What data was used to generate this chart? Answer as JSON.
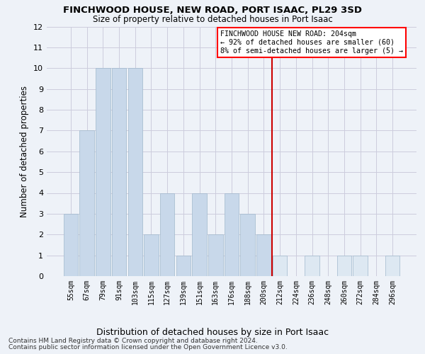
{
  "title": "FINCHWOOD HOUSE, NEW ROAD, PORT ISAAC, PL29 3SD",
  "subtitle": "Size of property relative to detached houses in Port Isaac",
  "xlabel": "Distribution of detached houses by size in Port Isaac",
  "ylabel": "Number of detached properties",
  "categories": [
    "55sqm",
    "67sqm",
    "79sqm",
    "91sqm",
    "103sqm",
    "115sqm",
    "127sqm",
    "139sqm",
    "151sqm",
    "163sqm",
    "176sqm",
    "188sqm",
    "200sqm",
    "212sqm",
    "224sqm",
    "236sqm",
    "248sqm",
    "260sqm",
    "272sqm",
    "284sqm",
    "296sqm"
  ],
  "values": [
    3,
    7,
    10,
    10,
    10,
    2,
    4,
    1,
    4,
    2,
    4,
    3,
    2,
    1,
    0,
    1,
    0,
    1,
    1,
    0,
    1
  ],
  "bar_color_left": "#c8d8ea",
  "bar_color_right": "#dde8f2",
  "bar_edge_color": "#a0b8cc",
  "grid_color": "#ccccdd",
  "vline_color": "#cc0000",
  "vline_bar_index": 12,
  "ylim_max": 12,
  "annotation_title": "FINCHWOOD HOUSE NEW ROAD: 204sqm",
  "annotation_line1": "← 92% of detached houses are smaller (60)",
  "annotation_line2": "8% of semi-detached houses are larger (5) →",
  "footer1": "Contains HM Land Registry data © Crown copyright and database right 2024.",
  "footer2": "Contains public sector information licensed under the Open Government Licence v3.0.",
  "bg_color": "#eef2f8",
  "title_fontsize": 9.5,
  "subtitle_fontsize": 8.5
}
